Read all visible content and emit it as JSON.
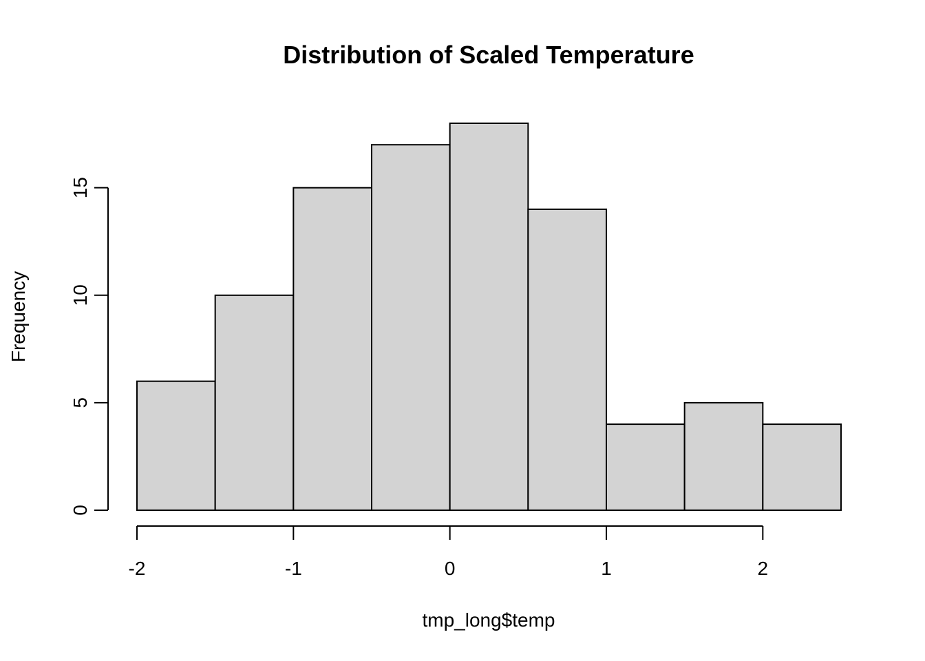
{
  "chart_data": {
    "type": "bar",
    "title": "Distribution of Scaled Temperature",
    "xlabel": "tmp_long$temp",
    "ylabel": "Frequency",
    "bins": [
      {
        "start": -2.0,
        "end": -1.5,
        "count": 6
      },
      {
        "start": -1.5,
        "end": -1.0,
        "count": 10
      },
      {
        "start": -1.0,
        "end": -0.5,
        "count": 15
      },
      {
        "start": -0.5,
        "end": 0.0,
        "count": 17
      },
      {
        "start": 0.0,
        "end": 0.5,
        "count": 18
      },
      {
        "start": 0.5,
        "end": 1.0,
        "count": 14
      },
      {
        "start": 1.0,
        "end": 1.5,
        "count": 4
      },
      {
        "start": 1.5,
        "end": 2.0,
        "count": 5
      },
      {
        "start": 2.0,
        "end": 2.5,
        "count": 4
      }
    ],
    "xlim": [
      -2.0,
      2.5
    ],
    "ylim": [
      0,
      18
    ],
    "x_ticks": [
      -2,
      -1,
      0,
      1,
      2
    ],
    "y_ticks": [
      0,
      5,
      10,
      15
    ],
    "x_tick_labels": [
      "-2",
      "-1",
      "0",
      "1",
      "2"
    ],
    "y_tick_labels": [
      "0",
      "5",
      "10",
      "15"
    ],
    "grid": false,
    "bar_color": "#d3d3d3",
    "edge_color": "#000000"
  }
}
